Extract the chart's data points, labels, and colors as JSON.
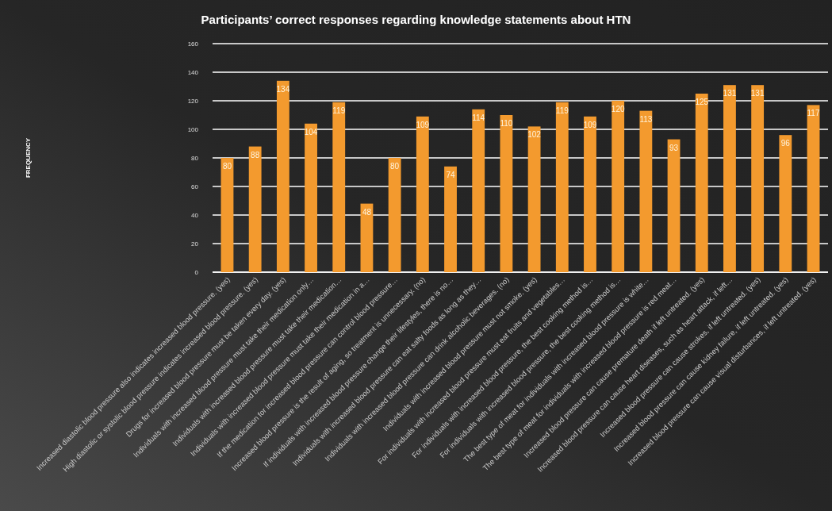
{
  "chart_data": {
    "type": "bar",
    "title": "Participants’ correct responses regarding knowledge statements about HTN",
    "ylabel": "FREQUENCY",
    "categories": [
      "Increased diastolic blood pressure also indicates increased blood pressure. (yes)",
      "High diastolic or systolic blood pressure indicates increased blood pressure. (yes)",
      "Drugs for increased blood pressure must be taken every day. (yes)",
      "Individuals with increased blood pressure must take their medication only…",
      "Individuals with increased blood pressure must take their medication…",
      "Individuals with increased blood pressure must take their medication in a…",
      "If the medication for increased blood pressure can control blood pressure…",
      "Increased blood pressure is the result of aging, so treatment is unnecessary. (no)",
      "If individuals with increased blood pressure change their lifestyles, there is no…",
      "Individuals with increased blood pressure can eat salty foods as long as they…",
      "Individuals with increased blood pressure can drink alcoholic beverages. (no)",
      "Individuals with increased blood pressure must not smoke. (yes)",
      "For individuals with increased blood pressure must eat fruits and vegetables…",
      "For individuals with increased blood pressure, the best cooking method is…",
      "For individuals with increased blood pressure, the best cooking method is…",
      "The best type of meat for individuals with increased blood pressure is white…",
      "The best type of meat for individuals with increased blood pressure is red meat…",
      "Increased blood pressure can cause premature death if left untreated. (yes)",
      "Increased blood pressure can cause heart diseases, such as heart attack, if left…",
      "Increased blood pressure can cause strokes, if left untreated. (yes)",
      "Increased blood pressure can cause kidney failure, if left untreated. (yes)",
      "Increased blood pressure can cause visual disturbances, if left untreated. (yes)"
    ],
    "values": [
      80,
      88,
      134,
      104,
      119,
      48,
      80,
      109,
      74,
      114,
      110,
      102,
      119,
      109,
      120,
      113,
      93,
      125,
      131,
      131,
      96,
      117
    ],
    "color": "#f39a2e",
    "data_labels": true,
    "grid": "y",
    "ylim": [
      0,
      160
    ],
    "yticks": [
      0,
      20,
      40,
      60,
      80,
      100,
      120,
      140,
      160
    ]
  }
}
